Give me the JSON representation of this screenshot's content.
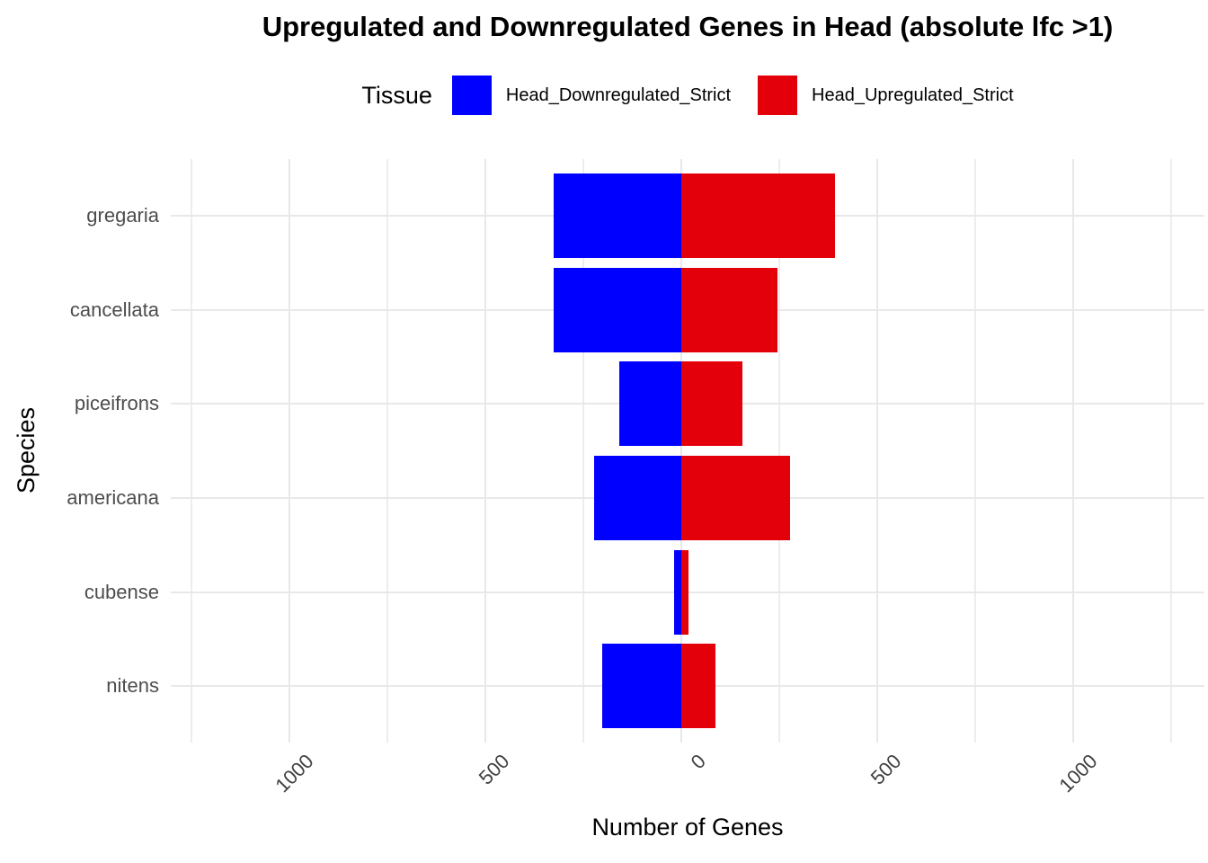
{
  "title": "Upregulated and Downregulated Genes in Head (absolute lfc >1)",
  "legend": {
    "title": "Tissue",
    "items": [
      {
        "label": "Head_Downregulated_Strict",
        "color": "#0000ff"
      },
      {
        "label": "Head_Upregulated_Strict",
        "color": "#e4000b"
      }
    ]
  },
  "chart_data": {
    "type": "bar",
    "orientation": "horizontal-diverging",
    "title": "Upregulated and Downregulated Genes in Head (absolute lfc >1)",
    "xlabel": "Number of Genes",
    "ylabel": "Species",
    "categories": [
      "gregaria",
      "cancellata",
      "piceifrons",
      "americana",
      "cubense",
      "nitens"
    ],
    "series": [
      {
        "name": "Head_Downregulated_Strict",
        "side": "left",
        "color": "#0000ff",
        "values": [
          327,
          326,
          158,
          223,
          19,
          201
        ]
      },
      {
        "name": "Head_Upregulated_Strict",
        "side": "right",
        "color": "#e4000b",
        "values": [
          392,
          245,
          157,
          278,
          18,
          88
        ]
      }
    ],
    "x_ticks": [
      -1000,
      -500,
      0,
      500,
      1000
    ],
    "x_tick_labels": [
      "1000",
      "500",
      "0",
      "500",
      "1000"
    ],
    "x_minor_ticks": [
      -1250,
      -750,
      -250,
      250,
      750,
      1250
    ],
    "xlim": [
      -1303,
      1335
    ],
    "grid": true,
    "legend_position": "top"
  },
  "colors": {
    "background": "#ffffff",
    "grid_major": "#e8e8e8",
    "grid_minor": "#ededed",
    "axis_text": "#4d4d4d",
    "title_text": "#000000"
  }
}
